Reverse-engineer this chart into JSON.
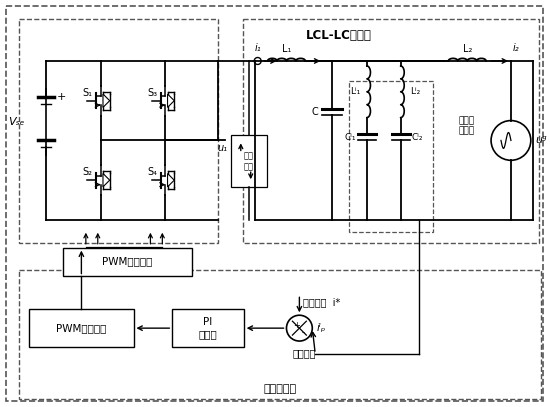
{
  "lcl_lc_label": "LCL-LC滤波器",
  "pwm_drive_label": "PWM驱动电路",
  "pwm_gen_label": "PWM发生电路",
  "pi_label": "PI\n调节器",
  "current_control_label": "电流控制环",
  "command_current_label": "指令电流  i*",
  "feedback_current_label": "反馈电流",
  "current_measure_label": "电流\n测量",
  "series_resonance_label": "串联谐\n振支路",
  "vdc_label": "Vₛₑ",
  "ug_label": "uᵍ",
  "i1_label": "i₁",
  "i2_label": "i₂",
  "L1_label": "L₁",
  "L2_label": "L₂",
  "C_label": "C",
  "Lf1_label": "Lⁱ₁",
  "Lf2_label": "Lⁱ₂",
  "Cf1_label": "Cⁱ₁",
  "Cf2_label": "Cⁱ₂",
  "ifp_label": "iⁱₚ",
  "u1_label": "u₁",
  "S1_label": "S₁",
  "S2_label": "S₂",
  "S3_label": "S₃",
  "S4_label": "S₄",
  "bg_color": "#ffffff",
  "line_color": "#000000"
}
